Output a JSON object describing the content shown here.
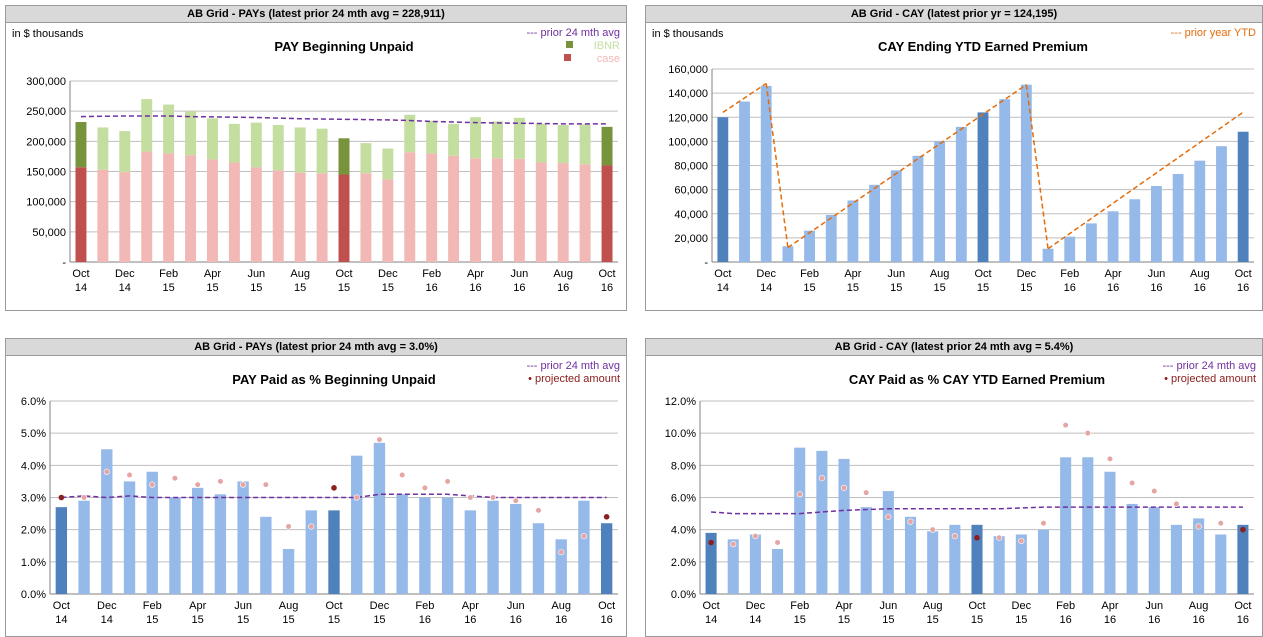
{
  "months": [
    "Oct\n14",
    "Nov\n14",
    "Dec\n14",
    "Jan\n15",
    "Feb\n15",
    "Mar\n15",
    "Apr\n15",
    "May\n15",
    "Jun\n15",
    "Jul\n15",
    "Aug\n15",
    "Sep\n15",
    "Oct\n15",
    "Nov\n15",
    "Dec\n15",
    "Jan\n16",
    "Feb\n16",
    "Mar\n16",
    "Apr\n16",
    "May\n16",
    "Jun\n16",
    "Jul\n16",
    "Aug\n16",
    "Sep\n16",
    "Oct\n16"
  ],
  "colors": {
    "case_dark": "#c0504d",
    "case_light": "#f2b8b5",
    "ibnr_dark": "#77933c",
    "ibnr_light": "#c4dea0",
    "bar_dark": "#4f81bd",
    "bar_light": "#95b9e8",
    "avg_line": "#7030a0",
    "prior_year": "#e46c0a",
    "proj_dark": "#8b2020",
    "proj_light": "#e6a5a5",
    "grid": "#bfbfbf"
  },
  "chart_data": [
    {
      "type": "bar",
      "panel_title": "AB Grid - PAYs (latest prior 24 mth avg = 228,911)",
      "title": "PAY Beginning Unpaid",
      "unit_note": "in $ thousands",
      "legend": [
        "--- prior 24 mth avg",
        "IBNR",
        "case"
      ],
      "ylim": [
        0,
        300000
      ],
      "yticks": [
        "-",
        "50,000",
        "100,000",
        "150,000",
        "200,000",
        "250,000",
        "300,000"
      ],
      "series": [
        {
          "name": "case",
          "values": [
            157000,
            153000,
            149000,
            183000,
            180000,
            177000,
            170000,
            165000,
            157000,
            152000,
            148000,
            147000,
            145000,
            147000,
            137000,
            182000,
            180000,
            176000,
            172000,
            172000,
            171000,
            165000,
            164000,
            162000,
            160000
          ]
        },
        {
          "name": "IBNR",
          "values": [
            75000,
            70000,
            68000,
            87000,
            81000,
            73000,
            68000,
            64000,
            74000,
            75000,
            75000,
            74000,
            60000,
            50000,
            51000,
            62000,
            54000,
            53000,
            68000,
            61000,
            68000,
            64000,
            63000,
            66000,
            64000
          ]
        },
        {
          "name": "prior 24 mth avg",
          "values": [
            241000,
            241500,
            242000,
            242000,
            242000,
            241000,
            240500,
            240000,
            239500,
            238500,
            237500,
            237000,
            236500,
            236000,
            235500,
            234500,
            233000,
            232000,
            231000,
            230500,
            230000,
            229500,
            229000,
            229000,
            228911
          ]
        }
      ]
    },
    {
      "type": "bar",
      "panel_title": "AB Grid - CAY (latest prior yr = 124,195)",
      "title": "CAY Ending YTD Earned Premium",
      "unit_note": "in $ thousands",
      "legend": [
        "--- prior year YTD"
      ],
      "ylim": [
        0,
        160000
      ],
      "yticks": [
        "-",
        "20,000",
        "40,000",
        "60,000",
        "80,000",
        "100,000",
        "120,000",
        "140,000",
        "160,000"
      ],
      "series": [
        {
          "name": "CAY YTD Earned Premium",
          "values": [
            120000,
            133000,
            146000,
            13000,
            26000,
            39000,
            51000,
            64000,
            76000,
            88000,
            100000,
            112000,
            124000,
            135000,
            147000,
            11000,
            21000,
            32000,
            42000,
            52000,
            63000,
            73000,
            84000,
            96000,
            108000
          ]
        },
        {
          "name": "prior year YTD",
          "segments": [
            [
              0,
              2,
              124000,
              148000
            ],
            [
              2,
              3,
              148000,
              12000
            ],
            [
              3,
              14,
              12000,
              147000
            ],
            [
              14,
              15,
              147000,
              11000
            ],
            [
              15,
              24,
              11000,
              124195
            ]
          ]
        }
      ]
    },
    {
      "type": "bar",
      "panel_title": "AB Grid - PAYs (latest prior 24 mth avg = 3.0%)",
      "title": "PAY Paid as % Beginning Unpaid",
      "legend": [
        "--- prior 24 mth avg",
        "• projected amount"
      ],
      "ylim": [
        0,
        6
      ],
      "yticks": [
        "0.0%",
        "1.0%",
        "2.0%",
        "3.0%",
        "4.0%",
        "5.0%",
        "6.0%"
      ],
      "series": [
        {
          "name": "Paid %",
          "values": [
            2.7,
            2.9,
            4.5,
            3.5,
            3.8,
            3.0,
            3.3,
            3.1,
            3.5,
            2.4,
            1.4,
            2.6,
            2.6,
            4.3,
            4.7,
            3.1,
            3.0,
            3.0,
            2.6,
            2.9,
            2.8,
            2.2,
            1.7,
            2.9,
            2.2
          ]
        },
        {
          "name": "projected amount",
          "values": [
            3.0,
            3.0,
            3.8,
            3.7,
            3.4,
            3.6,
            3.4,
            3.5,
            3.4,
            3.4,
            2.1,
            2.1,
            3.3,
            3.0,
            4.8,
            3.7,
            3.3,
            3.5,
            3.0,
            3.0,
            2.9,
            2.6,
            1.3,
            1.8,
            2.4
          ]
        },
        {
          "name": "prior 24 mth avg",
          "values": [
            3.0,
            3.05,
            3.0,
            3.05,
            3.0,
            3.0,
            3.0,
            3.0,
            3.0,
            3.0,
            3.0,
            3.0,
            3.0,
            3.0,
            3.1,
            3.1,
            3.1,
            3.1,
            3.05,
            3.0,
            3.0,
            3.0,
            3.0,
            3.0,
            3.0
          ]
        }
      ]
    },
    {
      "type": "bar",
      "panel_title": "AB Grid - CAY (latest prior 24 mth avg = 5.4%)",
      "title": "CAY Paid as % CAY YTD Earned Premium",
      "legend": [
        "--- prior 24 mth avg",
        "• projected amount"
      ],
      "ylim": [
        0,
        12
      ],
      "yticks": [
        "0.0%",
        "2.0%",
        "4.0%",
        "6.0%",
        "8.0%",
        "10.0%",
        "12.0%"
      ],
      "series": [
        {
          "name": "Paid %",
          "values": [
            3.8,
            3.4,
            3.7,
            2.8,
            9.1,
            8.9,
            8.4,
            5.4,
            6.4,
            4.8,
            3.9,
            4.3,
            4.3,
            3.6,
            3.7,
            4.0,
            8.5,
            8.5,
            7.6,
            5.6,
            5.4,
            4.3,
            4.7,
            3.7,
            4.3
          ]
        },
        {
          "name": "projected amount",
          "values": [
            3.2,
            3.1,
            3.6,
            3.2,
            6.2,
            7.2,
            6.6,
            6.3,
            4.8,
            4.5,
            4.0,
            3.6,
            3.5,
            3.5,
            3.3,
            4.4,
            10.5,
            10.0,
            8.4,
            6.9,
            6.4,
            5.6,
            4.2,
            4.4,
            4.0
          ]
        },
        {
          "name": "prior 24 mth avg",
          "values": [
            5.1,
            5.0,
            5.0,
            5.0,
            5.0,
            5.1,
            5.2,
            5.25,
            5.3,
            5.3,
            5.3,
            5.3,
            5.3,
            5.3,
            5.35,
            5.4,
            5.4,
            5.4,
            5.4,
            5.4,
            5.4,
            5.4,
            5.4,
            5.4,
            5.4
          ]
        }
      ]
    }
  ]
}
